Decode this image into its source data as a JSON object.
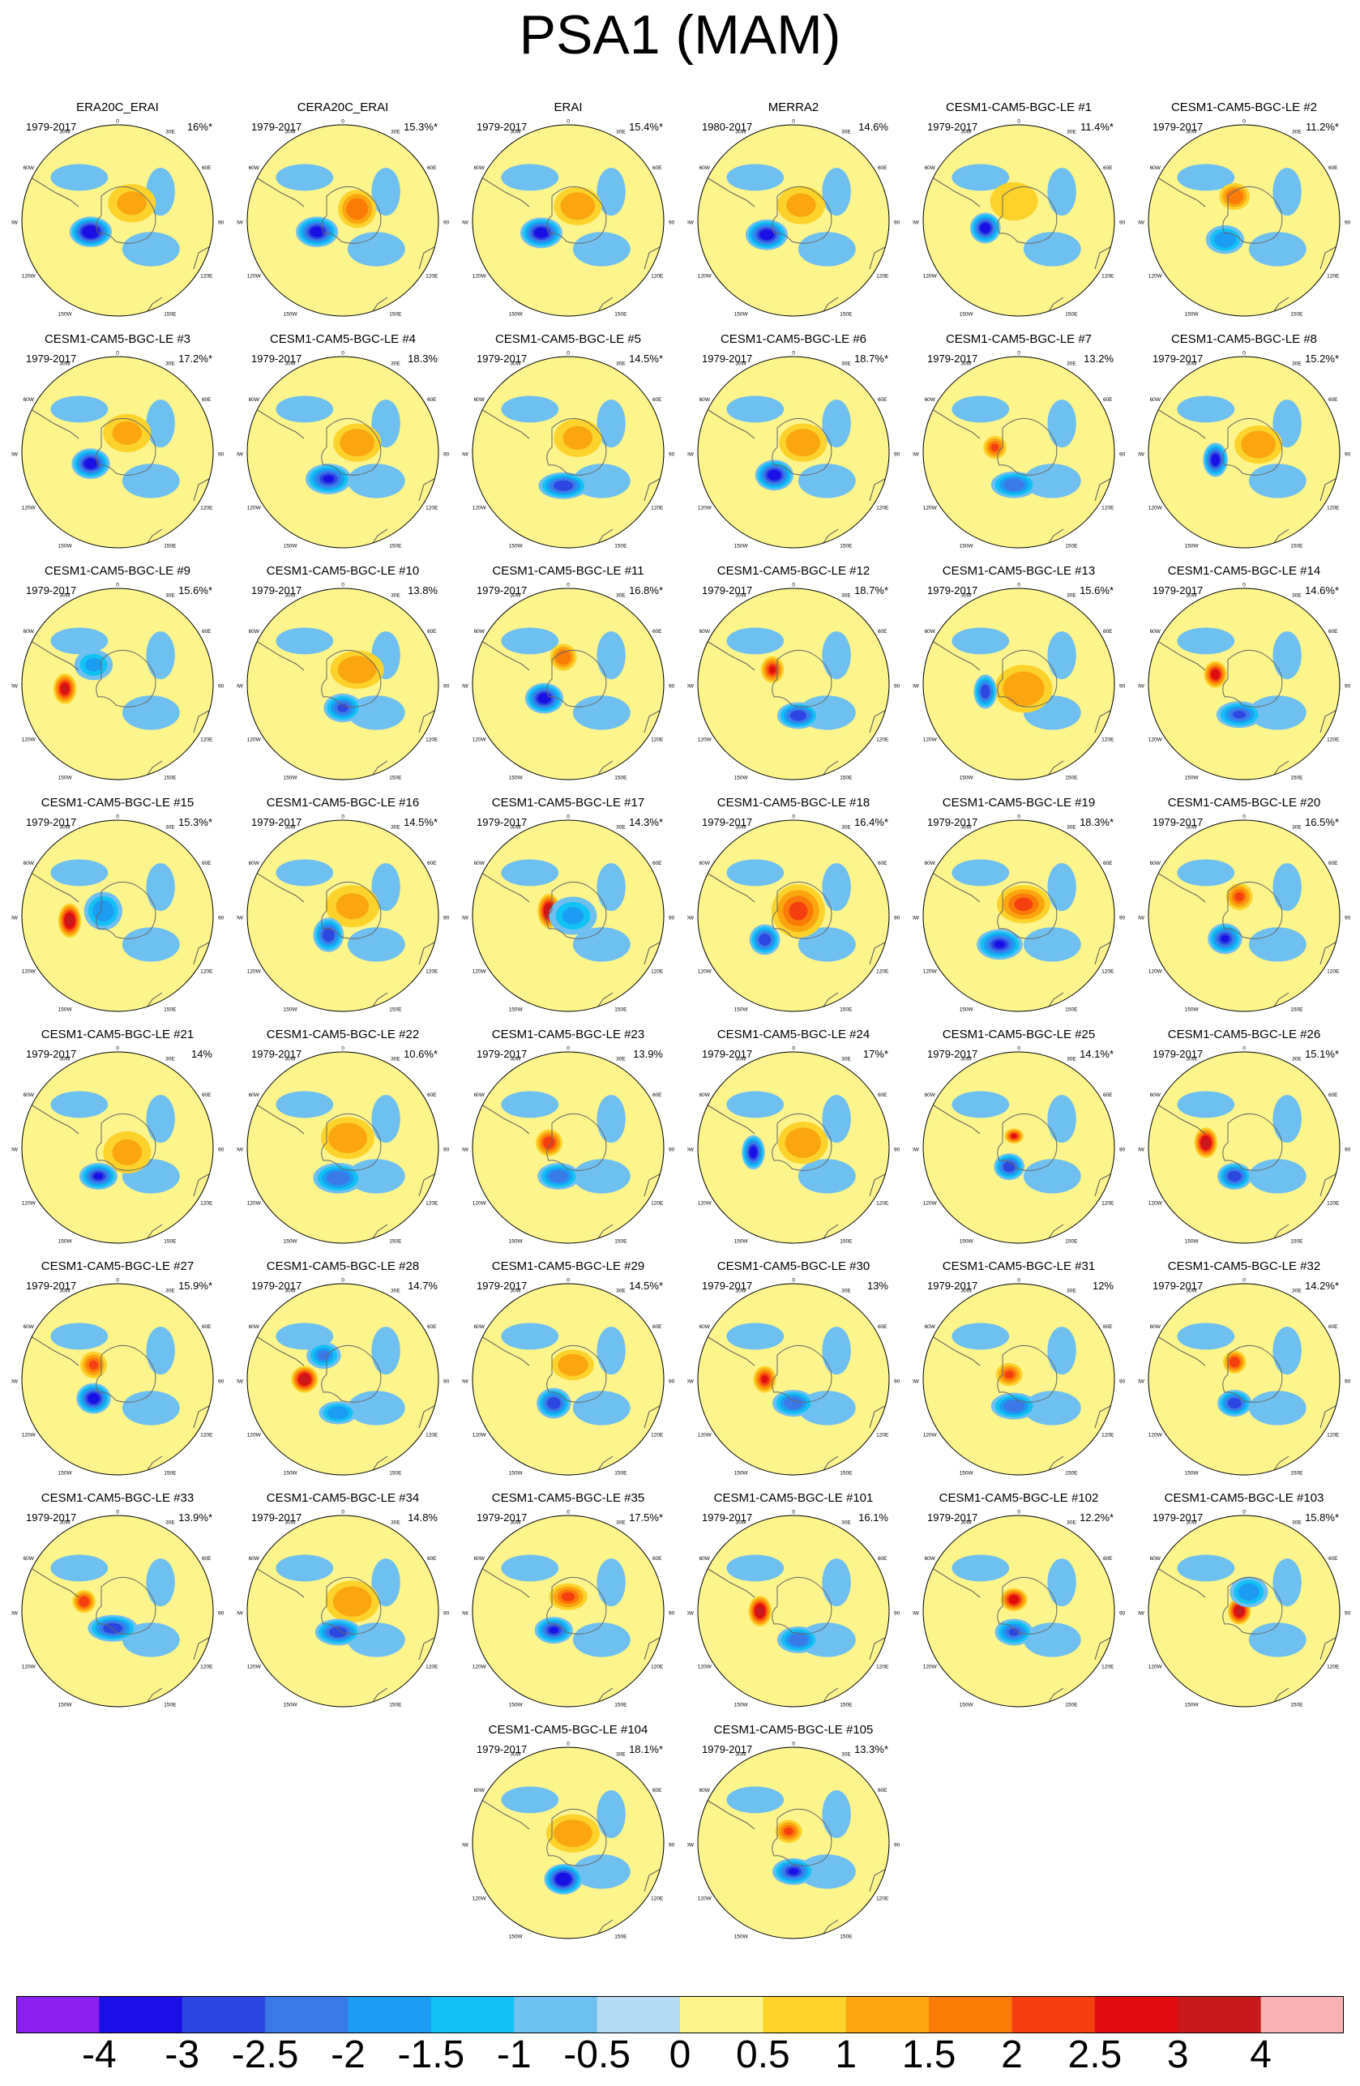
{
  "title": "PSA1 (MAM)",
  "chart_data": {
    "type": "heatmap",
    "projection": "south-polar-stereographic",
    "title": "PSA1 (MAM)",
    "colorbar": {
      "ticks": [
        "-4",
        "-3",
        "-2.5",
        "-2",
        "-1.5",
        "-1",
        "-0.5",
        "0",
        "0.5",
        "1",
        "1.5",
        "2",
        "2.5",
        "3",
        "4"
      ],
      "colors": [
        "#8a1ff0",
        "#1a0fe6",
        "#2d46e2",
        "#3a7ae8",
        "#1a9df2",
        "#12c2f5",
        "#6ec0f0",
        "#b5dcf2",
        "#fdf48c",
        "#fdd22b",
        "#fba510",
        "#fb7b08",
        "#f53f10",
        "#e00d10",
        "#c81a1c",
        "#f9b2b4"
      ],
      "tick_value_positions": [
        -4,
        -3,
        -2.5,
        -2,
        -1.5,
        -1,
        -0.5,
        0,
        0.5,
        1,
        1.5,
        2,
        2.5,
        3,
        4
      ]
    },
    "map_labels": {
      "top": "0",
      "top_left": "30W",
      "top_right": "30E",
      "upper_left": "60W",
      "upper_right": "60E",
      "left": "90W",
      "right": "90E",
      "lower_left": "120W",
      "lower_right": "120E",
      "bottom_left": "150W",
      "bottom_right": "150E",
      "bottom": "180"
    },
    "panels": [
      {
        "name": "ERA20C_ERAI",
        "period": "1979-2017",
        "pct": "16%*",
        "lows": [
          [
            -0.28,
            0.12,
            -3.8,
            0.22,
            0.16
          ]
        ],
        "highs": [
          [
            0.15,
            -0.18,
            1.2,
            0.25,
            0.2
          ]
        ]
      },
      {
        "name": "CERA20C_ERAI",
        "period": "1979-2017",
        "pct": "15.3%*",
        "lows": [
          [
            -0.27,
            0.12,
            -3.6,
            0.22,
            0.16
          ]
        ],
        "highs": [
          [
            0.15,
            -0.12,
            1.8,
            0.2,
            0.2
          ]
        ]
      },
      {
        "name": "ERAI",
        "period": "1979-2017",
        "pct": "15.4%*",
        "lows": [
          [
            -0.28,
            0.13,
            -3.6,
            0.22,
            0.16
          ]
        ],
        "highs": [
          [
            0.1,
            -0.15,
            1.3,
            0.25,
            0.2
          ]
        ]
      },
      {
        "name": "MERRA2",
        "period": "1980-2017",
        "pct": "14.6%",
        "lows": [
          [
            -0.28,
            0.15,
            -3.6,
            0.22,
            0.16
          ]
        ],
        "highs": [
          [
            0.08,
            -0.16,
            1.2,
            0.25,
            0.2
          ]
        ]
      },
      {
        "name": "CESM1-CAM5-BGC-LE #1",
        "period": "1979-2017",
        "pct": "11.4%*",
        "lows": [
          [
            -0.35,
            0.08,
            -3.5,
            0.16,
            0.16
          ]
        ],
        "highs": [
          [
            -0.05,
            -0.2,
            0.8,
            0.25,
            0.2
          ]
        ]
      },
      {
        "name": "CESM1-CAM5-BGC-LE #2",
        "period": "1979-2017",
        "pct": "11.2%*",
        "lows": [
          [
            -0.2,
            0.2,
            -1.8,
            0.2,
            0.15
          ]
        ],
        "highs": [
          [
            -0.1,
            -0.25,
            1.8,
            0.16,
            0.14
          ]
        ]
      },
      {
        "name": "CESM1-CAM5-BGC-LE #3",
        "period": "1979-2017",
        "pct": "17.2%*",
        "lows": [
          [
            -0.28,
            0.12,
            -3.4,
            0.2,
            0.16
          ]
        ],
        "highs": [
          [
            0.1,
            -0.2,
            1.1,
            0.25,
            0.2
          ]
        ]
      },
      {
        "name": "CESM1-CAM5-BGC-LE #4",
        "period": "1979-2017",
        "pct": "18.3%",
        "lows": [
          [
            -0.15,
            0.28,
            -3.2,
            0.24,
            0.16
          ]
        ],
        "highs": [
          [
            0.15,
            -0.1,
            1.3,
            0.25,
            0.2
          ]
        ]
      },
      {
        "name": "CESM1-CAM5-BGC-LE #5",
        "period": "1979-2017",
        "pct": "14.5%*",
        "lows": [
          [
            -0.05,
            0.35,
            -2.8,
            0.26,
            0.14
          ]
        ],
        "highs": [
          [
            0.1,
            -0.15,
            1.2,
            0.25,
            0.2
          ]
        ]
      },
      {
        "name": "CESM1-CAM5-BGC-LE #6",
        "period": "1979-2017",
        "pct": "18.7%*",
        "lows": [
          [
            -0.2,
            0.24,
            -3.4,
            0.2,
            0.16
          ]
        ],
        "highs": [
          [
            0.1,
            -0.1,
            1.4,
            0.25,
            0.2
          ]
        ]
      },
      {
        "name": "CESM1-CAM5-BGC-LE #7",
        "period": "1979-2017",
        "pct": "13.2%",
        "lows": [
          [
            -0.05,
            0.34,
            -2.5,
            0.24,
            0.14
          ]
        ],
        "highs": [
          [
            -0.25,
            -0.05,
            2.2,
            0.12,
            0.12
          ]
        ]
      },
      {
        "name": "CESM1-CAM5-BGC-LE #8",
        "period": "1979-2017",
        "pct": "15.2%*",
        "lows": [
          [
            -0.3,
            0.08,
            -3.6,
            0.13,
            0.18
          ]
        ],
        "highs": [
          [
            0.15,
            -0.08,
            1.4,
            0.25,
            0.2
          ]
        ]
      },
      {
        "name": "CESM1-CAM5-BGC-LE #9",
        "period": "1979-2017",
        "pct": "15.6%*",
        "lows": [
          [
            -0.25,
            -0.2,
            -1.6,
            0.2,
            0.16
          ]
        ],
        "highs": [
          [
            -0.55,
            0.05,
            3.2,
            0.12,
            0.16
          ]
        ]
      },
      {
        "name": "CESM1-CAM5-BGC-LE #10",
        "period": "1979-2017",
        "pct": "13.8%",
        "lows": [
          [
            0.0,
            0.25,
            -2.6,
            0.2,
            0.15
          ]
        ],
        "highs": [
          [
            0.15,
            -0.15,
            1.3,
            0.28,
            0.2
          ]
        ]
      },
      {
        "name": "CESM1-CAM5-BGC-LE #11",
        "period": "1979-2017",
        "pct": "16.8%*",
        "lows": [
          [
            -0.25,
            0.15,
            -3.6,
            0.2,
            0.16
          ]
        ],
        "highs": [
          [
            -0.05,
            -0.28,
            1.8,
            0.14,
            0.14
          ]
        ]
      },
      {
        "name": "CESM1-CAM5-BGC-LE #12",
        "period": "1979-2017",
        "pct": "18.7%*",
        "lows": [
          [
            0.05,
            0.33,
            -2.8,
            0.22,
            0.14
          ]
        ],
        "highs": [
          [
            -0.22,
            -0.15,
            2.6,
            0.12,
            0.14
          ]
        ]
      },
      {
        "name": "CESM1-CAM5-BGC-LE #13",
        "period": "1979-2017",
        "pct": "15.6%*",
        "lows": [
          [
            -0.35,
            0.08,
            -2.8,
            0.12,
            0.18
          ]
        ],
        "highs": [
          [
            0.05,
            0.05,
            1.3,
            0.3,
            0.25
          ]
        ]
      },
      {
        "name": "CESM1-CAM5-BGC-LE #14",
        "period": "1979-2017",
        "pct": "14.6%*",
        "lows": [
          [
            -0.05,
            0.32,
            -2.6,
            0.24,
            0.14
          ]
        ],
        "highs": [
          [
            -0.3,
            -0.1,
            2.8,
            0.12,
            0.14
          ]
        ]
      },
      {
        "name": "CESM1-CAM5-BGC-LE #15",
        "period": "1979-2017",
        "pct": "15.3%*",
        "lows": [
          [
            -0.15,
            -0.05,
            -1.8,
            0.2,
            0.2
          ]
        ],
        "highs": [
          [
            -0.5,
            0.05,
            3.6,
            0.12,
            0.18
          ]
        ]
      },
      {
        "name": "CESM1-CAM5-BGC-LE #16",
        "period": "1979-2017",
        "pct": "14.5%*",
        "lows": [
          [
            -0.15,
            0.2,
            -3.0,
            0.16,
            0.18
          ]
        ],
        "highs": [
          [
            0.1,
            -0.1,
            1.1,
            0.28,
            0.22
          ]
        ]
      },
      {
        "name": "CESM1-CAM5-BGC-LE #17",
        "period": "1979-2017",
        "pct": "14.3%*",
        "lows": [
          [
            0.05,
            0.0,
            -1.6,
            0.25,
            0.2
          ]
        ],
        "highs": [
          [
            -0.2,
            -0.05,
            3.6,
            0.12,
            0.18
          ]
        ]
      },
      {
        "name": "CESM1-CAM5-BGC-LE #18",
        "period": "1979-2017",
        "pct": "16.4%*",
        "lows": [
          [
            -0.3,
            0.25,
            -2.8,
            0.16,
            0.16
          ]
        ],
        "highs": [
          [
            0.05,
            -0.05,
            2.2,
            0.28,
            0.28
          ]
        ]
      },
      {
        "name": "CESM1-CAM5-BGC-LE #19",
        "period": "1979-2017",
        "pct": "18.3%*",
        "lows": [
          [
            -0.2,
            0.3,
            -3.2,
            0.24,
            0.16
          ]
        ],
        "highs": [
          [
            0.05,
            -0.12,
            2.0,
            0.28,
            0.2
          ]
        ]
      },
      {
        "name": "CESM1-CAM5-BGC-LE #20",
        "period": "1979-2017",
        "pct": "16.5%*",
        "lows": [
          [
            -0.2,
            0.24,
            -3.2,
            0.18,
            0.16
          ]
        ],
        "highs": [
          [
            -0.05,
            -0.2,
            2.2,
            0.14,
            0.14
          ]
        ]
      },
      {
        "name": "CESM1-CAM5-BGC-LE #21",
        "period": "1979-2017",
        "pct": "14%",
        "lows": [
          [
            -0.2,
            0.3,
            -3.2,
            0.2,
            0.14
          ]
        ],
        "highs": [
          [
            0.1,
            0.05,
            1.1,
            0.25,
            0.22
          ]
        ]
      },
      {
        "name": "CESM1-CAM5-BGC-LE #22",
        "period": "1979-2017",
        "pct": "10.6%*",
        "lows": [
          [
            -0.05,
            0.32,
            -2.4,
            0.26,
            0.16
          ]
        ],
        "highs": [
          [
            0.05,
            -0.1,
            1.3,
            0.28,
            0.22
          ]
        ]
      },
      {
        "name": "CESM1-CAM5-BGC-LE #23",
        "period": "1979-2017",
        "pct": "13.9%",
        "lows": [
          [
            -0.1,
            0.3,
            -2.4,
            0.22,
            0.14
          ]
        ],
        "highs": [
          [
            -0.2,
            -0.05,
            2.4,
            0.14,
            0.14
          ]
        ]
      },
      {
        "name": "CESM1-CAM5-BGC-LE #24",
        "period": "1979-2017",
        "pct": "17%*",
        "lows": [
          [
            -0.42,
            0.05,
            -3.4,
            0.12,
            0.18
          ]
        ],
        "highs": [
          [
            0.1,
            -0.05,
            1.3,
            0.26,
            0.22
          ]
        ]
      },
      {
        "name": "CESM1-CAM5-BGC-LE #25",
        "period": "1979-2017",
        "pct": "14.1%*",
        "lows": [
          [
            -0.1,
            0.2,
            -3.0,
            0.16,
            0.14
          ]
        ],
        "highs": [
          [
            -0.05,
            -0.12,
            2.6,
            0.1,
            0.08
          ]
        ]
      },
      {
        "name": "CESM1-CAM5-BGC-LE #26",
        "period": "1979-2017",
        "pct": "15.1%*",
        "lows": [
          [
            -0.1,
            0.3,
            -2.8,
            0.18,
            0.14
          ]
        ],
        "highs": [
          [
            -0.4,
            -0.05,
            3.6,
            0.12,
            0.16
          ]
        ]
      },
      {
        "name": "CESM1-CAM5-BGC-LE #27",
        "period": "1979-2017",
        "pct": "15.9%*",
        "lows": [
          [
            -0.25,
            0.2,
            -3.4,
            0.18,
            0.16
          ]
        ],
        "highs": [
          [
            -0.25,
            -0.15,
            2.2,
            0.14,
            0.14
          ]
        ]
      },
      {
        "name": "CESM1-CAM5-BGC-LE #28",
        "period": "1979-2017",
        "pct": "14.7%",
        "lows": [
          [
            -0.2,
            -0.25,
            -2.2,
            0.18,
            0.14
          ],
          [
            -0.05,
            0.35,
            -2.0,
            0.2,
            0.12
          ]
        ],
        "highs": [
          [
            -0.4,
            0.0,
            3.4,
            0.14,
            0.14
          ]
        ]
      },
      {
        "name": "CESM1-CAM5-BGC-LE #29",
        "period": "1979-2017",
        "pct": "14.5%*",
        "lows": [
          [
            -0.15,
            0.25,
            -3.0,
            0.18,
            0.16
          ]
        ],
        "highs": [
          [
            0.05,
            -0.15,
            1.4,
            0.22,
            0.16
          ]
        ]
      },
      {
        "name": "CESM1-CAM5-BGC-LE #30",
        "period": "1979-2017",
        "pct": "13%",
        "lows": [
          [
            0.0,
            0.25,
            -2.4,
            0.22,
            0.14
          ]
        ],
        "highs": [
          [
            -0.3,
            0.0,
            2.6,
            0.12,
            0.14
          ]
        ]
      },
      {
        "name": "CESM1-CAM5-BGC-LE #31",
        "period": "1979-2017",
        "pct": "12%",
        "lows": [
          [
            -0.05,
            0.28,
            -2.4,
            0.24,
            0.14
          ]
        ],
        "highs": [
          [
            -0.1,
            -0.05,
            2.0,
            0.14,
            0.12
          ]
        ]
      },
      {
        "name": "CESM1-CAM5-BGC-LE #32",
        "period": "1979-2017",
        "pct": "14.2%*",
        "lows": [
          [
            -0.1,
            0.25,
            -3.0,
            0.18,
            0.14
          ]
        ],
        "highs": [
          [
            -0.1,
            -0.18,
            2.4,
            0.12,
            0.12
          ]
        ]
      },
      {
        "name": "CESM1-CAM5-BGC-LE #33",
        "period": "1979-2017",
        "pct": "13.9%*",
        "lows": [
          [
            -0.05,
            0.18,
            -2.8,
            0.26,
            0.14
          ]
        ],
        "highs": [
          [
            -0.35,
            -0.1,
            2.4,
            0.12,
            0.12
          ]
        ]
      },
      {
        "name": "CESM1-CAM5-BGC-LE #34",
        "period": "1979-2017",
        "pct": "14.8%",
        "lows": [
          [
            -0.05,
            0.22,
            -3.0,
            0.24,
            0.14
          ]
        ],
        "highs": [
          [
            0.1,
            -0.1,
            1.3,
            0.28,
            0.22
          ]
        ]
      },
      {
        "name": "CESM1-CAM5-BGC-LE #35",
        "period": "1979-2017",
        "pct": "17.5%*",
        "lows": [
          [
            -0.15,
            0.2,
            -3.2,
            0.2,
            0.14
          ]
        ],
        "highs": [
          [
            0.0,
            -0.15,
            2.0,
            0.2,
            0.14
          ]
        ]
      },
      {
        "name": "CESM1-CAM5-BGC-LE #101",
        "period": "1979-2017",
        "pct": "16.1%",
        "lows": [
          [
            0.05,
            0.3,
            -2.4,
            0.22,
            0.14
          ]
        ],
        "highs": [
          [
            -0.35,
            0.0,
            3.6,
            0.12,
            0.16
          ]
        ]
      },
      {
        "name": "CESM1-CAM5-BGC-LE #102",
        "period": "1979-2017",
        "pct": "12.2%*",
        "lows": [
          [
            -0.05,
            0.22,
            -2.6,
            0.2,
            0.14
          ]
        ],
        "highs": [
          [
            -0.05,
            -0.12,
            2.8,
            0.14,
            0.12
          ]
        ]
      },
      {
        "name": "CESM1-CAM5-BGC-LE #103",
        "period": "1979-2017",
        "pct": "15.8%*",
        "lows": [
          [
            0.05,
            -0.2,
            -1.8,
            0.2,
            0.16
          ]
        ],
        "highs": [
          [
            -0.05,
            0.0,
            3.6,
            0.12,
            0.14
          ]
        ]
      },
      {
        "name": "CESM1-CAM5-BGC-LE #104",
        "period": "1979-2017",
        "pct": "18.1%*",
        "lows": [
          [
            -0.05,
            0.38,
            -3.8,
            0.2,
            0.16
          ]
        ],
        "highs": [
          [
            0.05,
            -0.1,
            1.3,
            0.28,
            0.2
          ]
        ]
      },
      {
        "name": "CESM1-CAM5-BGC-LE #105",
        "period": "1979-2017",
        "pct": "13.3%*",
        "lows": [
          [
            0.0,
            0.3,
            -3.2,
            0.22,
            0.14
          ]
        ],
        "highs": [
          [
            -0.05,
            -0.12,
            2.2,
            0.14,
            0.12
          ]
        ]
      }
    ]
  }
}
